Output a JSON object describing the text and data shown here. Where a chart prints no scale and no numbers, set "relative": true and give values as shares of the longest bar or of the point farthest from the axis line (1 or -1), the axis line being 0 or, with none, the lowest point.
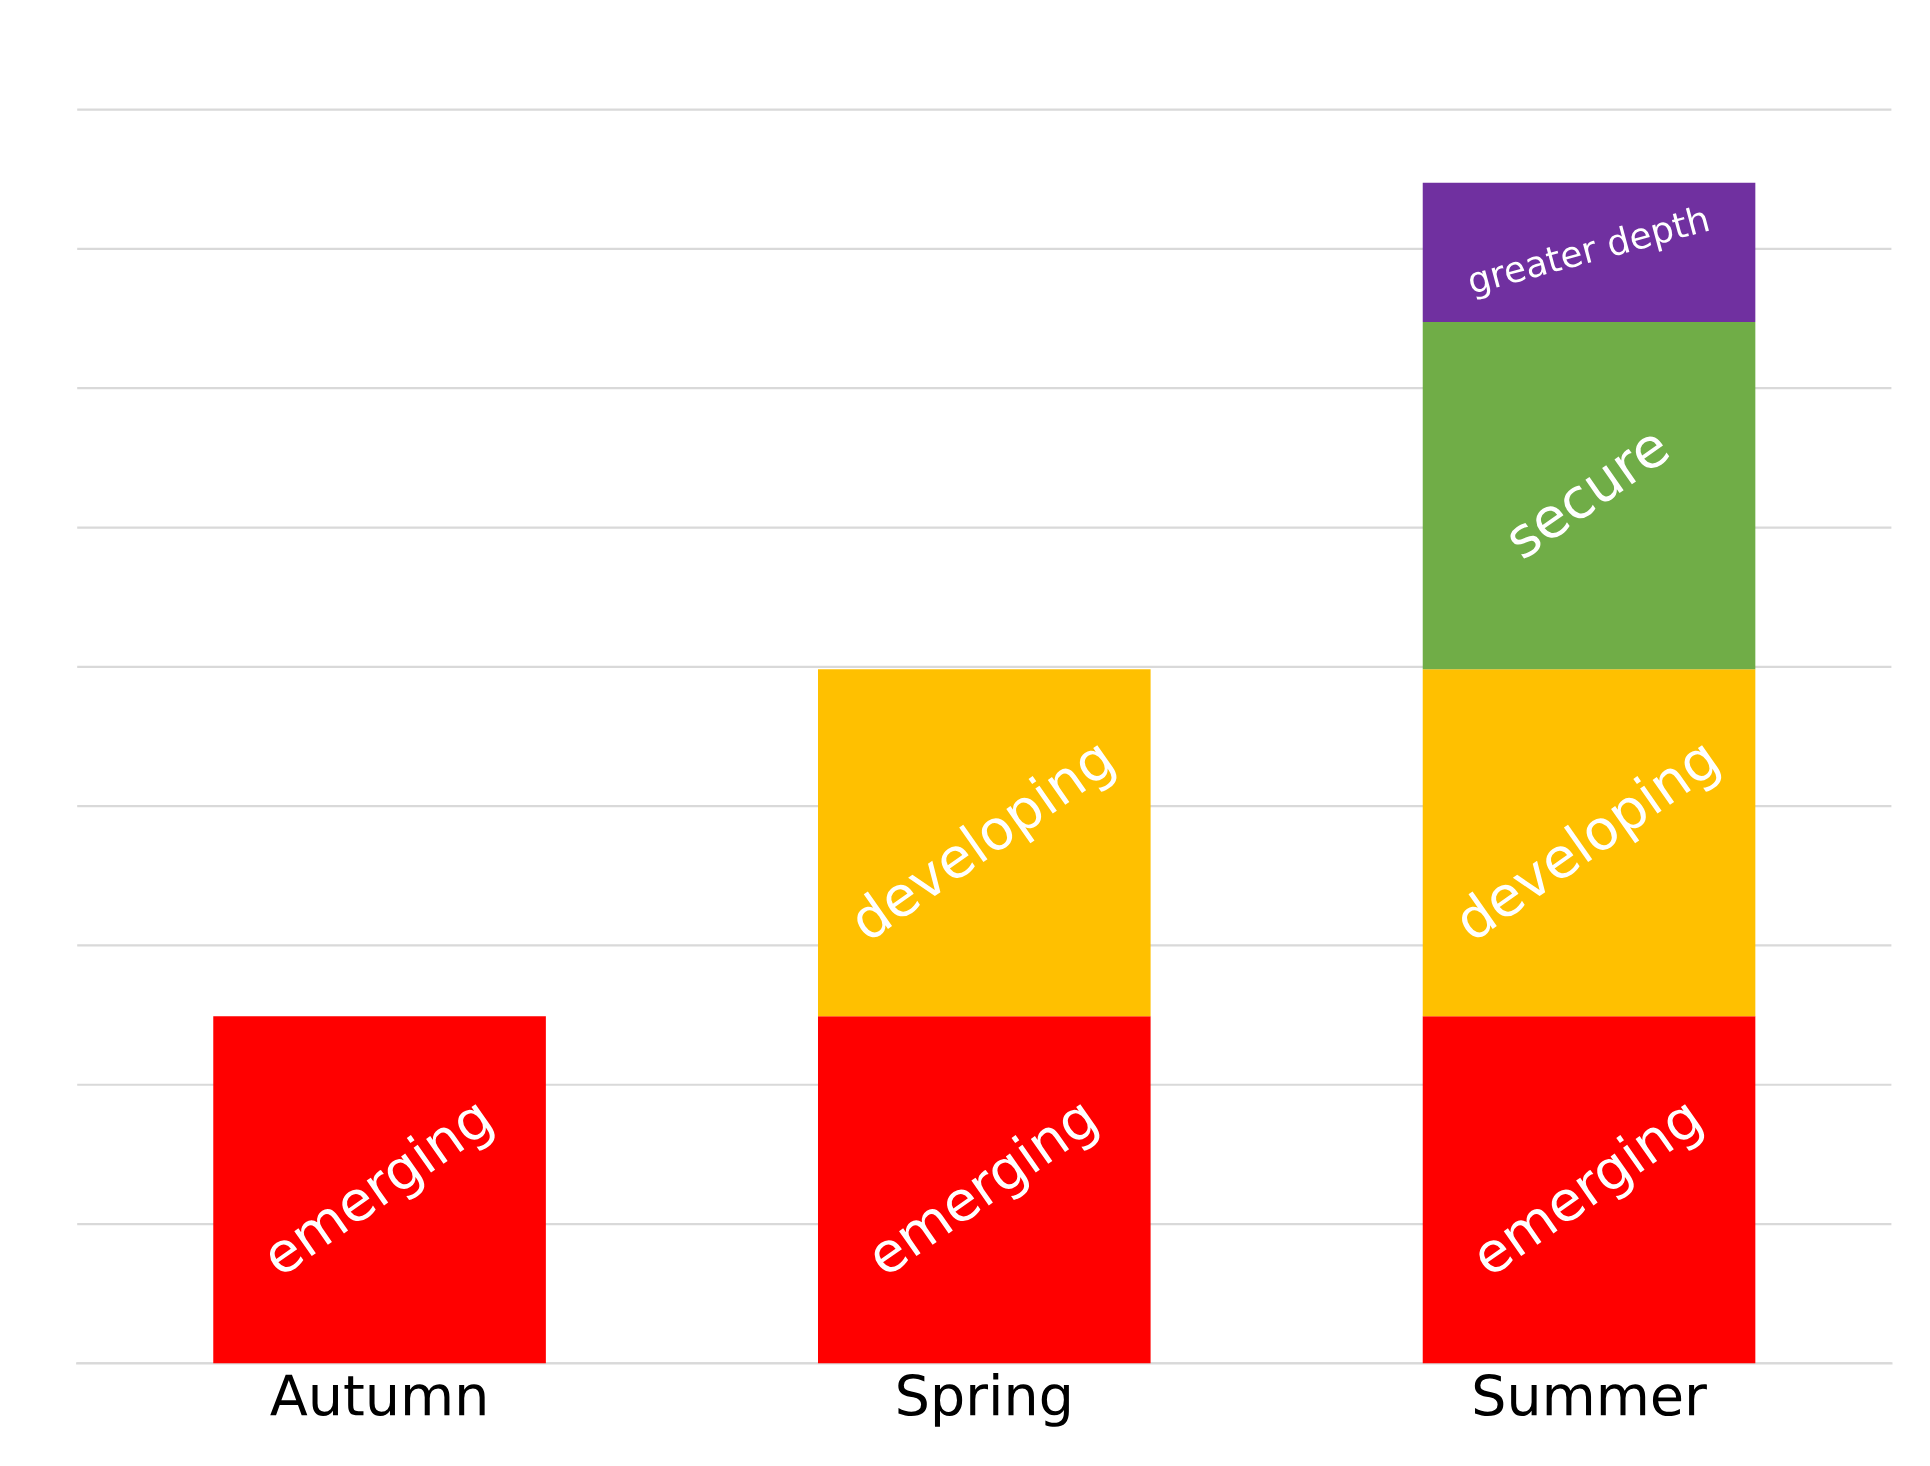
{
  "chart_data": {
    "type": "bar",
    "stacked": true,
    "relative": true,
    "grid": "y",
    "legend": false,
    "categories": [
      "Autumn",
      "Spring",
      "Summer"
    ],
    "series": [
      {
        "name": "emerging",
        "color": "#ff0000",
        "values": [
          0.294,
          0.294,
          0.294
        ]
      },
      {
        "name": "developing",
        "color": "#ffc000",
        "values": [
          null,
          0.294,
          0.294
        ]
      },
      {
        "name": "secure",
        "color": "#70ad47",
        "values": [
          null,
          null,
          0.294
        ]
      },
      {
        "name": "greater depth",
        "color": "#7030a0",
        "values": [
          null,
          null,
          0.118
        ]
      }
    ]
  }
}
